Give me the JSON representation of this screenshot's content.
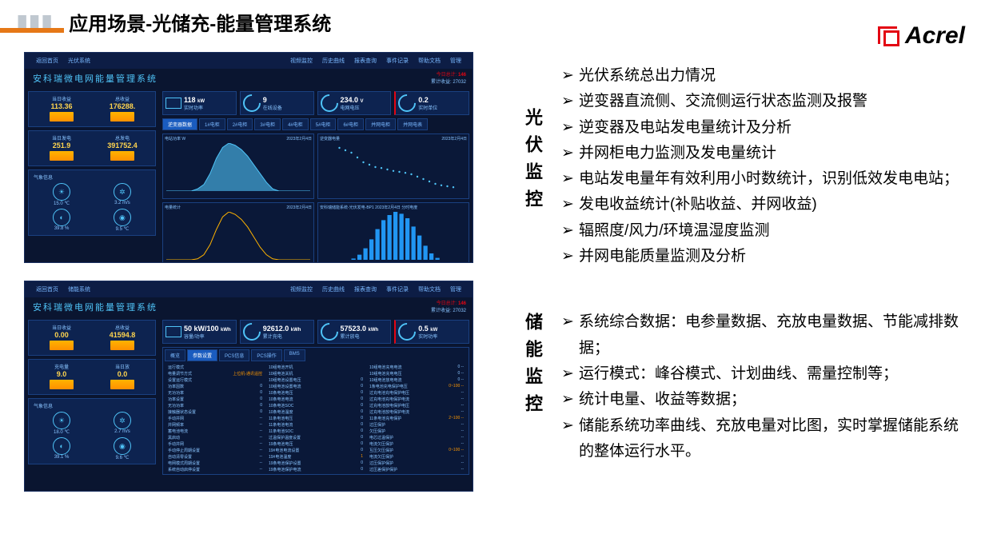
{
  "header": {
    "title": "应用场景-光储充-能量管理系统"
  },
  "logo": {
    "text": "Acrel"
  },
  "sections": [
    {
      "vlabel": "光伏监控",
      "bullets": [
        "光伏系统总出力情况",
        "逆变器直流侧、交流侧运行状态监测及报警",
        "逆变器及电站发电量统计及分析",
        "并网柜电力监测及发电量统计",
        "电站发电量年有效利用小时数统计，识别低效发电电站；",
        "发电收益统计(补贴收益、并网收益)",
        "辐照度/风力/环境温湿度监测",
        "并网电能质量监测及分析"
      ]
    },
    {
      "vlabel": "储能监控",
      "bullets": [
        "系统综合数据：电参量数据、充放电量数据、节能减排数据；",
        "运行模式：峰谷模式、计划曲线、需量控制等；",
        "统计电量、收益等数据；",
        "储能系统功率曲线、充放电量对比图，实时掌握储能系统的整体运行水平。"
      ]
    }
  ],
  "screenshots": {
    "pv": {
      "sys_title": "安科瑞微电网能量管理系统",
      "topnav": {
        "back": "返回首页",
        "current": "光伏系统",
        "menu": [
          "视频监控",
          "历史曲线",
          "报表查询",
          "事件记录",
          "帮助文档"
        ],
        "user": "管理"
      },
      "today_stat": {
        "label": "今日总计",
        "value": "146",
        "cumul_label": "累计收益",
        "cumul": "27032"
      },
      "income": {
        "left_label": "当日收益",
        "left_val": "113.36",
        "left_unit": "元",
        "right_label": "总收益",
        "right_val": "176288.",
        "right_unit": "元"
      },
      "gen": {
        "left_label": "当日发电",
        "left_val": "251.9",
        "left_unit": "kWh",
        "right_label": "总发电",
        "right_val": "391752.4",
        "right_unit": "kWh"
      },
      "env": {
        "title": "气象信息",
        "temp": "15.0",
        "temp_unit": "℃",
        "wind": "3.2",
        "wind_unit": "m/s",
        "humid": "39.8",
        "humid_unit": "%",
        "irrad": "9.5",
        "irrad_unit": "℃"
      },
      "metrics": [
        {
          "icon": "laptop",
          "val": "118",
          "unit": "kW",
          "sub": "实时功率"
        },
        {
          "icon": "gauge",
          "val": "9",
          "unit": "",
          "sub": "在线设备"
        },
        {
          "icon": "gauge",
          "val": "234.0",
          "unit": "V",
          "sub": "电网电压"
        },
        {
          "icon": "gauge",
          "val": "0.2",
          "unit": "",
          "sub": "实时单位"
        }
      ],
      "tabs": [
        "逆变器数据",
        "1#电柜",
        "2#电柜",
        "3#电柜",
        "4#电柜",
        "5#电柜",
        "6#电柜",
        "并网电柜",
        "并网电表"
      ],
      "charts": [
        {
          "title": "电站功率 W",
          "date": "2023年2月4日",
          "type": "area",
          "color": "#4fc3f7",
          "yrange": [
            0,
            120
          ],
          "data": [
            0,
            0,
            0,
            0,
            0,
            5,
            15,
            40,
            75,
            100,
            110,
            105,
            95,
            80,
            60,
            40,
            20,
            5,
            0,
            0,
            0,
            0,
            0,
            0
          ]
        },
        {
          "title": "逆变器电量",
          "date": "2023年2月4日",
          "type": "scatter",
          "color": "#4fc3f7",
          "data": [
            [
              3,
              90
            ],
            [
              4,
              85
            ],
            [
              5,
              80
            ],
            [
              6,
              70
            ],
            [
              7,
              60
            ],
            [
              8,
              55
            ],
            [
              9,
              50
            ],
            [
              10,
              48
            ],
            [
              11,
              45
            ],
            [
              12,
              42
            ],
            [
              13,
              40
            ],
            [
              14,
              38
            ],
            [
              15,
              35
            ],
            [
              16,
              30
            ],
            [
              17,
              25
            ],
            [
              18,
              20
            ],
            [
              19,
              15
            ],
            [
              20,
              12
            ],
            [
              21,
              10
            ],
            [
              22,
              8
            ]
          ]
        },
        {
          "title": "电量统计",
          "date": "2023年2月4日",
          "type": "line",
          "color": "#ffb300",
          "data": [
            0,
            0,
            0,
            0,
            0,
            2,
            10,
            30,
            60,
            85,
            95,
            90,
            80,
            65,
            45,
            25,
            10,
            2,
            0,
            0,
            0,
            0,
            0,
            0
          ]
        },
        {
          "title": "安科瑞储能系统-光伏发电-BP1 2023年2月4日 分时电度",
          "date": "",
          "type": "bar",
          "color": "#2196f3",
          "data": [
            0,
            0,
            0,
            0,
            0,
            2,
            8,
            18,
            32,
            48,
            62,
            70,
            75,
            72,
            65,
            52,
            38,
            22,
            10,
            3,
            0,
            0,
            0,
            0
          ]
        }
      ]
    },
    "ess": {
      "sys_title": "安科瑞微电网能量管理系统",
      "topnav": {
        "back": "返回首页",
        "current": "储能系统",
        "menu": [
          "视频监控",
          "历史曲线",
          "报表查询",
          "事件记录",
          "帮助文档"
        ],
        "user": "管理"
      },
      "today_stat": {
        "label": "今日总计",
        "value": "146",
        "cumul_label": "累计收益",
        "cumul": "27032"
      },
      "income": {
        "left_label": "当日收益",
        "left_val": "0.00",
        "left_unit": "元",
        "right_label": "总收益",
        "right_val": "41594.8",
        "right_unit": "元"
      },
      "gen": {
        "left_label": "充电量",
        "left_val": "9.0",
        "left_unit": "kWh",
        "right_label": "当日放",
        "right_val": "0.0",
        "right_unit": "kWh"
      },
      "env": {
        "title": "气象信息",
        "temp": "18.0",
        "temp_unit": "℃",
        "wind": "2.7",
        "wind_unit": "m/s",
        "humid": "39.1",
        "humid_unit": "%",
        "irrad": "9.6",
        "irrad_unit": "℃"
      },
      "metrics": [
        {
          "icon": "laptop",
          "val": "50 kW/100",
          "unit": "kWh",
          "sub": "容量/功率"
        },
        {
          "icon": "gauge",
          "val": "92612.0",
          "unit": "kWh",
          "sub": "累计充电"
        },
        {
          "icon": "gauge",
          "val": "57523.0",
          "unit": "kWh",
          "sub": "累计放电"
        },
        {
          "icon": "gauge",
          "val": "0.5",
          "unit": "kW",
          "sub": "实时功率"
        }
      ],
      "table_tabs": [
        "概览",
        "参数设置",
        "PCS信息",
        "PCS操作",
        "BMS"
      ],
      "table_rows": [
        [
          "运行模式",
          "",
          "",
          "10组电池开机",
          "",
          "",
          "10组电池充电电流",
          "0",
          "--"
        ],
        [
          "电量调节方式",
          "上位机-通讯遥控",
          "",
          "10组电池关机",
          "",
          "",
          "10组电池充电电压",
          "0",
          "--"
        ],
        [
          "设置运行模式",
          "",
          "",
          "10组电池设置电压",
          "0",
          "",
          "10组电池放电电流",
          "0",
          "--"
        ],
        [
          "功率因数",
          "",
          "0",
          "10组电池设置电流",
          "0",
          "",
          "1条电池充电保护电压",
          "0~100",
          "--"
        ],
        [
          "无功功率",
          "",
          "0",
          "10条电池电压",
          "0",
          "",
          "过充电池充电保护电压",
          "",
          "--"
        ],
        [
          "功率设置",
          "",
          "0",
          "10条电池电流",
          "0",
          "",
          "过充电池充电保护电流",
          "",
          "--"
        ],
        [
          "无功功率",
          "",
          "0",
          "10条电池SOC",
          "0",
          "",
          "过充电池放电保护电压",
          "",
          "--"
        ],
        [
          "接触器状态设置",
          "",
          "0",
          "10条电池温度",
          "0",
          "",
          "过充电池放电保护电流",
          "",
          "--"
        ],
        [
          "手动并网",
          "",
          "--",
          "11条电池电压",
          "0",
          "",
          "11条电池充电保护",
          "2~100",
          "--"
        ],
        [
          "并网频率",
          "",
          "--",
          "11条电池电流",
          "0",
          "",
          "过压保护",
          "",
          "--"
        ],
        [
          "蓄电池电流",
          "",
          "--",
          "11条电池SOC",
          "0",
          "",
          "欠压保护",
          "",
          "--"
        ],
        [
          "黑启动",
          "",
          "--",
          "过温保护温度设置",
          "0",
          "",
          "电芯过温保护",
          "",
          "--"
        ],
        [
          "手动并网",
          "",
          "--",
          "19条电池电压",
          "0",
          "",
          "电流欠压保护",
          "",
          "--"
        ],
        [
          "手动停止周期设置",
          "",
          "--",
          "19#电池电流设置",
          "0",
          "",
          "互压欠压保护",
          "0~100",
          "--"
        ],
        [
          "自动清零设置",
          "",
          "--",
          "19#电池温度",
          "1",
          "",
          "电流欠压保护",
          "",
          "--"
        ],
        [
          "电网模式周期设置",
          "",
          "--",
          "19条电池保护设置",
          "0",
          "",
          "过压保护保护",
          "",
          "--"
        ],
        [
          "系统自动启停设置",
          "",
          "--",
          "19条电池保护电流",
          "0",
          "",
          "过压差保护保护",
          "",
          "--"
        ]
      ]
    }
  }
}
